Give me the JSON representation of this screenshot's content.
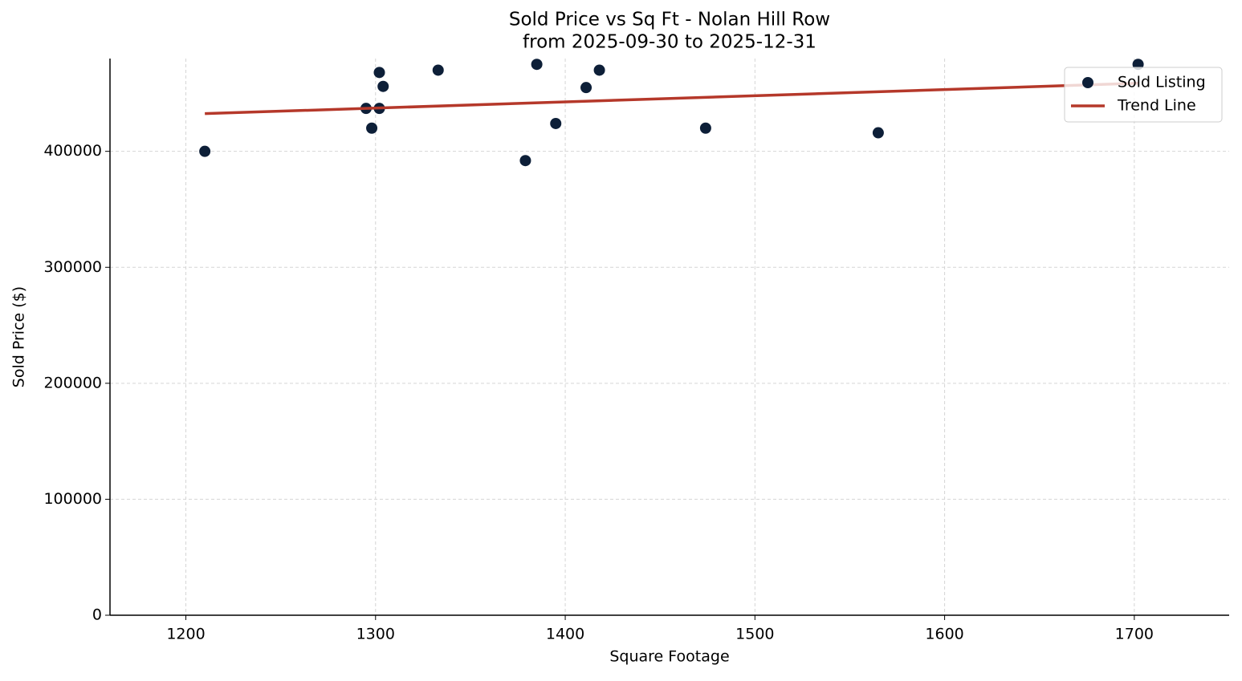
{
  "chart_data": {
    "type": "scatter",
    "title": "Sold Price vs Sq Ft - Nolan Hill Row",
    "subtitle": "from 2025-09-30 to 2025-12-31",
    "x_label": "Square Footage",
    "y_label": "Sold Price ($)",
    "xlim": [
      1160,
      1750
    ],
    "ylim": [
      0,
      480000
    ],
    "xticks": [
      1200,
      1300,
      1400,
      1500,
      1600,
      1700
    ],
    "yticks": [
      0,
      100000,
      200000,
      300000,
      400000
    ],
    "grid": true,
    "legend": "upper right",
    "series": [
      {
        "name": "Sold Listing",
        "mode": "markers",
        "color": "#0d1f38",
        "x": [
          1210,
          1295,
          1298,
          1302,
          1304,
          1302,
          1333,
          1379,
          1385,
          1395,
          1411,
          1418,
          1474,
          1565,
          1702
        ],
        "values": [
          400000,
          437000,
          420000,
          468000,
          456000,
          437000,
          470000,
          392000,
          475000,
          424000,
          455000,
          470000,
          420000,
          416000,
          475000
        ]
      },
      {
        "name": "Trend Line",
        "mode": "line",
        "color": "#b5382a",
        "x": [
          1210,
          1702
        ],
        "values": [
          432500,
          458700
        ]
      }
    ]
  }
}
